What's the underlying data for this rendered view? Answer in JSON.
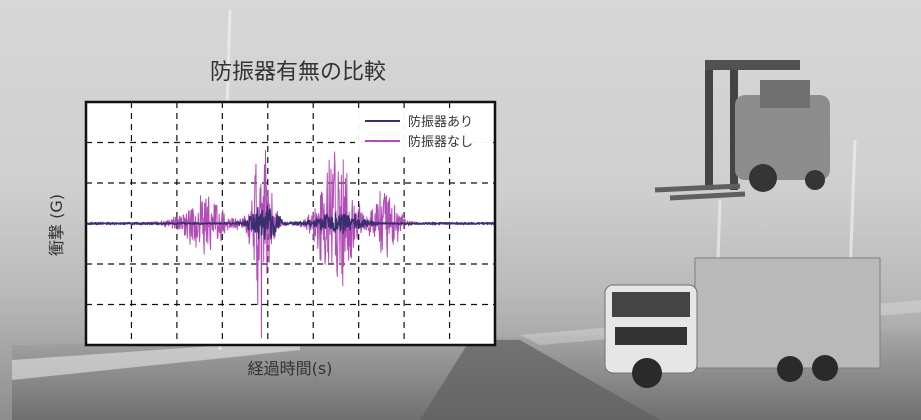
{
  "chart_data": {
    "type": "line",
    "title": "防振器有無の比較",
    "xlabel": "経過時間(s)",
    "ylabel": "衝撃 (G)",
    "grid": true,
    "legend_position": "top-right",
    "ylim": [
      -1,
      1
    ],
    "xlim": [
      0,
      10
    ],
    "series": [
      {
        "name": "防振器あり",
        "color": "#3a2f6e"
      },
      {
        "name": "防振器なし",
        "color": "#b24cb7"
      }
    ]
  }
}
